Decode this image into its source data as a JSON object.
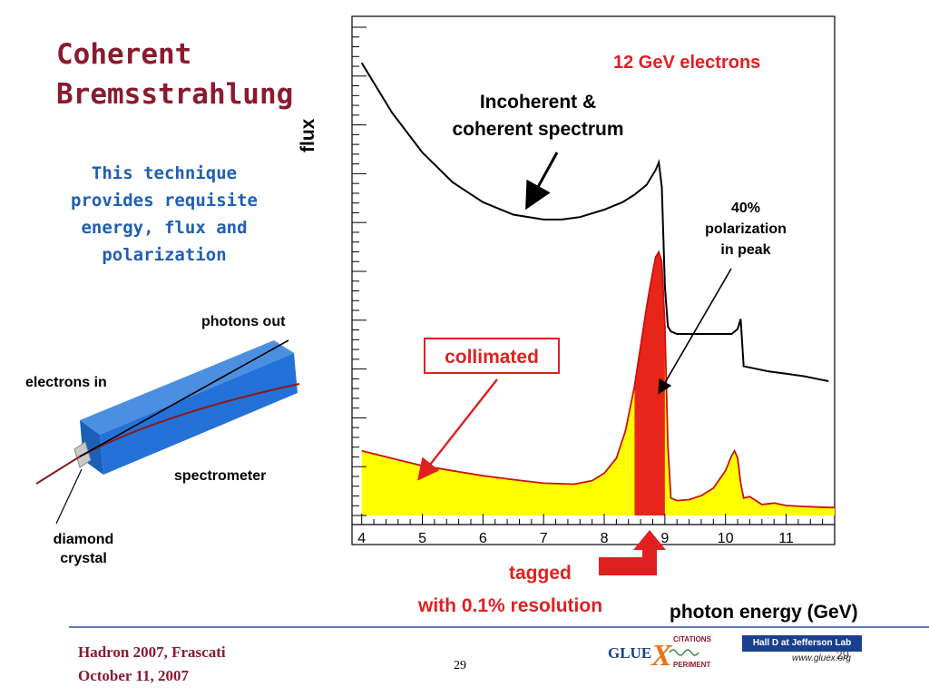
{
  "slide": {
    "title": "Coherent\nBremsstrahlung",
    "subtitle": "This technique\nprovides requisite\nenergy, flux and\npolarization",
    "footer_left": "Hadron 2007, Frascati\nOctober 11, 2007",
    "page_number": "29"
  },
  "diagram": {
    "photons_out": "photons out",
    "electrons_in": "electrons in",
    "spectrometer": "spectrometer",
    "diamond": "diamond\ncrystal"
  },
  "annotations": {
    "beam": "12 GeV electrons",
    "incoherent": "Incoherent &\ncoherent spectrum",
    "polarization": "40%\npolarization\nin peak",
    "collimated": "collimated",
    "tagged": "tagged",
    "resolution": "with 0.1% resolution"
  },
  "logos": {
    "gluex_left": "GLUE",
    "gluex_x": "X",
    "gluex_top": "CITATIONS",
    "gluex_bottom": "PERIMENT",
    "hall_banner": "Hall D at Jefferson Lab",
    "hall_url": "www.gluex.org",
    "hall_page": "29"
  },
  "colors": {
    "title": "#8b1a2e",
    "subtitle": "#1f5fb4",
    "accent_red": "#e02020",
    "fill_yellow": "#ffff00",
    "footer_rule": "#5d7fb8"
  },
  "chart_data": {
    "type": "line",
    "title": "12 GeV electrons",
    "xlabel": "photon energy (GeV)",
    "ylabel": "flux",
    "xlim": [
      3.9,
      11.8
    ],
    "ylim": [
      0,
      10
    ],
    "x_ticks": [
      4,
      5,
      6,
      7,
      8,
      9,
      10,
      11
    ],
    "x_tick_labels": [
      "4",
      "5",
      "6",
      "7",
      "8",
      "9",
      "10",
      "11"
    ],
    "grid": false,
    "series": [
      {
        "role": "incoherent + coherent spectrum",
        "color": "#000000",
        "fill": "none",
        "x": [
          4.0,
          4.5,
          5.0,
          5.5,
          6.0,
          6.5,
          7.0,
          7.3,
          7.6,
          8.0,
          8.3,
          8.5,
          8.7,
          8.85,
          8.9,
          8.95,
          9.0,
          9.05,
          9.1,
          9.2,
          9.4,
          9.6,
          9.8,
          10.0,
          10.1,
          10.2,
          10.25,
          10.3,
          10.5,
          10.7,
          11.0,
          11.3,
          11.5,
          11.7
        ],
        "y": [
          9.1,
          8.1,
          7.3,
          6.7,
          6.3,
          6.05,
          5.95,
          5.95,
          6.0,
          6.15,
          6.3,
          6.45,
          6.65,
          6.95,
          7.1,
          6.6,
          4.6,
          3.8,
          3.7,
          3.65,
          3.65,
          3.65,
          3.65,
          3.65,
          3.65,
          3.75,
          3.95,
          3.0,
          2.95,
          2.9,
          2.85,
          2.8,
          2.75,
          2.7
        ]
      },
      {
        "role": "collimated",
        "color": "#cc1010",
        "fill": "#ffff00",
        "x": [
          4.0,
          4.5,
          5.0,
          5.5,
          6.0,
          6.5,
          7.0,
          7.5,
          7.8,
          8.0,
          8.2,
          8.35,
          8.5,
          8.6,
          8.7,
          8.8,
          8.85,
          8.9,
          8.95,
          9.0,
          9.05,
          9.1,
          9.2,
          9.4,
          9.6,
          9.8,
          10.0,
          10.1,
          10.15,
          10.2,
          10.25,
          10.3,
          10.4,
          10.6,
          10.8,
          11.0,
          11.3,
          11.7
        ],
        "y": [
          1.3,
          1.15,
          1.0,
          0.9,
          0.8,
          0.72,
          0.65,
          0.63,
          0.7,
          0.85,
          1.15,
          1.7,
          2.6,
          3.4,
          4.2,
          4.9,
          5.2,
          5.3,
          5.1,
          3.8,
          1.4,
          0.35,
          0.3,
          0.32,
          0.4,
          0.55,
          0.9,
          1.2,
          1.3,
          1.15,
          0.65,
          0.35,
          0.38,
          0.22,
          0.25,
          0.2,
          0.18,
          0.16
        ]
      }
    ],
    "tagged_band": [
      8.5,
      9.0
    ]
  }
}
